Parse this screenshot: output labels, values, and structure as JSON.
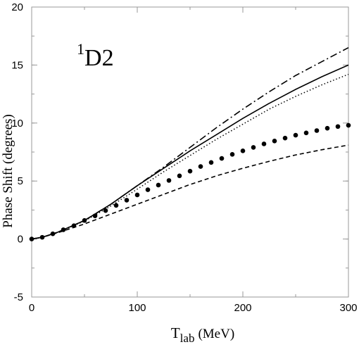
{
  "chart_data": {
    "type": "line",
    "panel_label": {
      "superscript": "1",
      "main": "D",
      "subscript": "2"
    },
    "xlabel": {
      "main": "T",
      "subscript": "lab",
      "unit": "(MeV)"
    },
    "ylabel": "Phase Shift (degrees)",
    "xlim": [
      0,
      300
    ],
    "ylim": [
      -5,
      20
    ],
    "x_ticks": [
      0,
      100,
      200,
      300
    ],
    "y_ticks": [
      -5,
      0,
      5,
      10,
      15,
      20
    ],
    "x_minor_step": 50,
    "y_minor_step": 2.5,
    "grid": false,
    "series": [
      {
        "style": "dash-dot",
        "x": [
          0,
          10,
          25,
          50,
          75,
          100,
          125,
          150,
          175,
          200,
          225,
          250,
          275,
          300
        ],
        "y": [
          0,
          0.15,
          0.6,
          1.6,
          3.0,
          4.6,
          6.2,
          7.9,
          9.6,
          11.2,
          12.7,
          14.1,
          15.3,
          16.5
        ]
      },
      {
        "style": "solid",
        "x": [
          0,
          10,
          25,
          50,
          75,
          100,
          125,
          150,
          175,
          200,
          225,
          250,
          275,
          300
        ],
        "y": [
          0,
          0.15,
          0.6,
          1.6,
          3.0,
          4.6,
          6.1,
          7.6,
          9.0,
          10.4,
          11.7,
          12.9,
          14.0,
          15.0
        ]
      },
      {
        "style": "dotted",
        "x": [
          0,
          10,
          25,
          50,
          75,
          100,
          125,
          150,
          175,
          200,
          225,
          250,
          275,
          300
        ],
        "y": [
          0,
          0.15,
          0.58,
          1.55,
          2.85,
          4.3,
          5.8,
          7.2,
          8.6,
          9.9,
          11.2,
          12.3,
          13.3,
          14.2
        ]
      },
      {
        "style": "dashed",
        "x": [
          0,
          10,
          25,
          50,
          75,
          100,
          125,
          150,
          175,
          200,
          225,
          250,
          275,
          300
        ],
        "y": [
          0,
          0.15,
          0.55,
          1.3,
          2.15,
          3.0,
          3.85,
          4.7,
          5.45,
          6.1,
          6.7,
          7.25,
          7.7,
          8.1
        ]
      },
      {
        "style": "markers",
        "x": [
          0,
          10,
          20,
          30,
          40,
          50,
          60,
          70,
          80,
          90,
          100,
          110,
          120,
          130,
          140,
          150,
          160,
          170,
          180,
          190,
          200,
          210,
          220,
          230,
          240,
          250,
          260,
          270,
          280,
          290,
          300
        ],
        "y": [
          0,
          0.15,
          0.45,
          0.8,
          1.15,
          1.6,
          2.0,
          2.45,
          2.9,
          3.35,
          3.8,
          4.25,
          4.65,
          5.05,
          5.45,
          5.85,
          6.25,
          6.6,
          6.95,
          7.3,
          7.6,
          7.9,
          8.2,
          8.45,
          8.7,
          8.95,
          9.15,
          9.35,
          9.55,
          9.7,
          9.8
        ]
      }
    ]
  },
  "colors": {
    "axis": "#999999",
    "line": "#000000",
    "background": "#ffffff"
  }
}
